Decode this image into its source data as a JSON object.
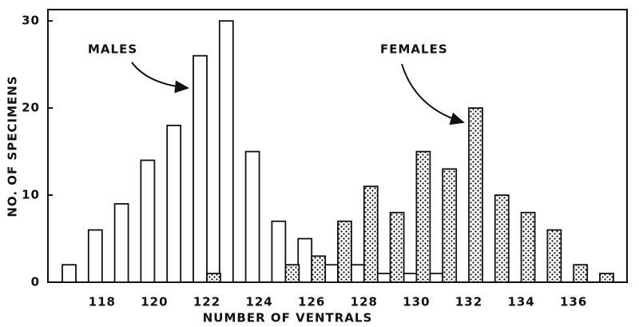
{
  "chart_data": {
    "type": "bar",
    "x_label": "NUMBER OF VENTRALS",
    "y_label": "NO. OF SPECIMENS",
    "categories": [
      null,
      "118",
      null,
      "120",
      null,
      "122",
      null,
      "124",
      null,
      "126",
      null,
      "128",
      null,
      "130",
      null,
      "132",
      null,
      "134",
      null,
      "136",
      null
    ],
    "series": [
      {
        "name": "MALES",
        "color": "#ffffff",
        "values": [
          2,
          6,
          9,
          14,
          18,
          26,
          30,
          15,
          7,
          5,
          2,
          2,
          1,
          1,
          1,
          0,
          0,
          0,
          0,
          0,
          0
        ]
      },
      {
        "name": "FEMALES",
        "color": "#000000",
        "values": [
          0,
          0,
          0,
          0,
          0,
          1,
          0,
          0,
          2,
          3,
          7,
          11,
          8,
          15,
          13,
          20,
          10,
          8,
          6,
          2,
          1
        ]
      }
    ],
    "ylim": [
      0,
      31.3
    ],
    "yticks": [
      0,
      10,
      20,
      30
    ]
  }
}
